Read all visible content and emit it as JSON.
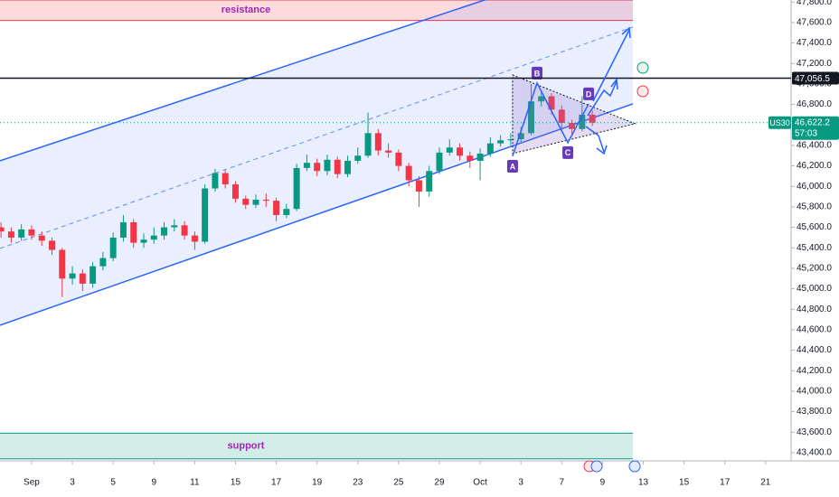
{
  "chart_data": {
    "type": "candlestick",
    "symbol": "US30",
    "up_color": "#089981",
    "down_color": "#f23645",
    "xlim": [
      -1.55,
      37.25
    ],
    "ylim": [
      43320,
      47820
    ],
    "xticks": [
      {
        "value": 0,
        "label": "Sep"
      },
      {
        "value": 2,
        "label": "3"
      },
      {
        "value": 4,
        "label": "5"
      },
      {
        "value": 6,
        "label": "9"
      },
      {
        "value": 8,
        "label": "11"
      },
      {
        "value": 10,
        "label": "15"
      },
      {
        "value": 12,
        "label": "17"
      },
      {
        "value": 14,
        "label": "19"
      },
      {
        "value": 16,
        "label": "23"
      },
      {
        "value": 18,
        "label": "25"
      },
      {
        "value": 20,
        "label": "29"
      },
      {
        "value": 22,
        "label": "Oct"
      },
      {
        "value": 24,
        "label": "3"
      },
      {
        "value": 26,
        "label": "7"
      },
      {
        "value": 28,
        "label": "9"
      },
      {
        "value": 30,
        "label": "13"
      },
      {
        "value": 32,
        "label": "15"
      },
      {
        "value": 34,
        "label": "17"
      },
      {
        "value": 36,
        "label": "21"
      }
    ],
    "yticks": [
      {
        "value": 43400,
        "label": "43,400.0"
      },
      {
        "value": 43600,
        "label": "43,600.0"
      },
      {
        "value": 43800,
        "label": "43,800.0"
      },
      {
        "value": 44000,
        "label": "44,000.0"
      },
      {
        "value": 44200,
        "label": "44,200.0"
      },
      {
        "value": 44400,
        "label": "44,400.0"
      },
      {
        "value": 44600,
        "label": "44,600.0"
      },
      {
        "value": 44800,
        "label": "44,800.0"
      },
      {
        "value": 45000,
        "label": "45,000.0"
      },
      {
        "value": 45200,
        "label": "45,200.0"
      },
      {
        "value": 45400,
        "label": "45,400.0"
      },
      {
        "value": 45600,
        "label": "45,600.0"
      },
      {
        "value": 45800,
        "label": "45,800.0"
      },
      {
        "value": 46000,
        "label": "46,000.0"
      },
      {
        "value": 46200,
        "label": "46,200.0"
      },
      {
        "value": 46400,
        "label": "46,400.0"
      },
      {
        "value": 46600,
        "label": "46,600.0"
      },
      {
        "value": 46800,
        "label": "46,800.0"
      },
      {
        "value": 47000,
        "label": "47,000.0"
      },
      {
        "value": 47200,
        "label": "47,200.0"
      },
      {
        "value": 47400,
        "label": "47,400.0"
      },
      {
        "value": 47600,
        "label": "47,600.0"
      },
      {
        "value": 47800,
        "label": "47,800.0"
      }
    ],
    "x": [
      -1.5,
      -1,
      -0.5,
      0,
      0.5,
      1,
      1.5,
      2,
      2.5,
      3,
      3.5,
      4,
      4.5,
      5,
      5.5,
      6,
      6.5,
      7,
      7.5,
      8,
      8.5,
      9,
      9.5,
      10,
      10.5,
      11,
      11.5,
      12,
      12.5,
      13,
      13.5,
      14,
      14.5,
      15,
      15.5,
      16,
      16.5,
      17,
      17.5,
      18,
      18.5,
      19,
      19.5,
      20,
      20.5,
      21,
      21.5,
      22,
      22.5,
      23,
      23.5,
      24,
      24.5,
      25,
      25.5,
      26,
      26.5,
      27,
      27.5
    ],
    "open": [
      45600,
      45560,
      45500,
      45580,
      45520,
      45470,
      45380,
      45100,
      45150,
      45050,
      45220,
      45300,
      45500,
      45650,
      45450,
      45480,
      45520,
      45600,
      45620,
      45520,
      45460,
      45980,
      46130,
      46020,
      45880,
      45820,
      45870,
      45860,
      45720,
      45780,
      46180,
      46230,
      46150,
      46260,
      46120,
      46250,
      46300,
      46520,
      46350,
      46330,
      46200,
      46060,
      45950,
      46150,
      46330,
      46380,
      46300,
      46250,
      46320,
      46420,
      46450,
      46460,
      46520,
      46830,
      46880,
      46750,
      46620,
      46560,
      46700
    ],
    "high": [
      45650,
      45600,
      45630,
      45620,
      45560,
      45500,
      45400,
      45220,
      45190,
      45260,
      45360,
      45550,
      45720,
      45680,
      45540,
      45600,
      45650,
      45680,
      45660,
      45560,
      46020,
      46170,
      46160,
      46050,
      45910,
      45920,
      45930,
      45890,
      45830,
      46220,
      46310,
      46270,
      46310,
      46290,
      46300,
      46380,
      46720,
      46560,
      46420,
      46360,
      46230,
      46100,
      46200,
      46380,
      46460,
      46420,
      46340,
      46370,
      46480,
      46500,
      46520,
      46580,
      47000,
      46940,
      46910,
      46790,
      46650,
      46880,
      46740
    ],
    "low": [
      45500,
      45450,
      45470,
      45480,
      45420,
      45330,
      44920,
      45040,
      44980,
      45010,
      45180,
      45270,
      45460,
      45400,
      45400,
      45440,
      45480,
      45560,
      45480,
      45380,
      45440,
      45950,
      45980,
      45840,
      45780,
      45790,
      45800,
      45660,
      45690,
      45760,
      46150,
      46100,
      46110,
      46080,
      46090,
      46220,
      46280,
      46300,
      46280,
      46150,
      46000,
      45800,
      45900,
      46120,
      46300,
      46250,
      46180,
      46060,
      46290,
      46390,
      46400,
      46420,
      46500,
      46780,
      46700,
      46560,
      46500,
      46540,
      46590
    ],
    "close": [
      45560,
      45500,
      45580,
      45520,
      45470,
      45380,
      45100,
      45150,
      45050,
      45220,
      45300,
      45500,
      45650,
      45450,
      45480,
      45520,
      45600,
      45620,
      45520,
      45460,
      45980,
      46130,
      46020,
      45880,
      45820,
      45870,
      45860,
      45720,
      45780,
      46180,
      46230,
      46150,
      46260,
      46120,
      46250,
      46300,
      46520,
      46350,
      46330,
      46200,
      46060,
      45950,
      46150,
      46330,
      46380,
      46300,
      46250,
      46320,
      46420,
      46450,
      46460,
      46520,
      46830,
      46880,
      46750,
      46620,
      46560,
      46700,
      46622
    ],
    "zones": [
      {
        "name": "resistance",
        "range": [
          47620,
          47820
        ],
        "color": "#f23645"
      },
      {
        "name": "support",
        "range": [
          43340,
          43590
        ],
        "color": "#089981"
      }
    ],
    "channel": {
      "color": "#2962ff",
      "upper": {
        "x": [
          -1.55,
          29.49
        ],
        "y": [
          46250,
          48300
        ]
      },
      "middle": {
        "x": [
          -1.55,
          29.49
        ],
        "y": [
          45394,
          47556
        ]
      },
      "lower": {
        "x": [
          -1.55,
          29.49
        ],
        "y": [
          44644,
          46806
        ]
      }
    },
    "pattern": {
      "color": "#673ab7",
      "labels": [
        "A",
        "B",
        "C",
        "D"
      ],
      "x": [
        23.59,
        24.79,
        26.3,
        27.32
      ],
      "y": [
        46294,
        47009,
        46427,
        46806
      ]
    },
    "triangle": {
      "x": [
        23.59,
        29.6,
        23.59
      ],
      "y": [
        47088,
        46612,
        46321
      ]
    },
    "levels": [
      {
        "value": 47056.5,
        "label": "47,056.5"
      }
    ],
    "last_price": {
      "value": 46622.2,
      "label": "46,622.2",
      "countdown": "57:03"
    }
  }
}
